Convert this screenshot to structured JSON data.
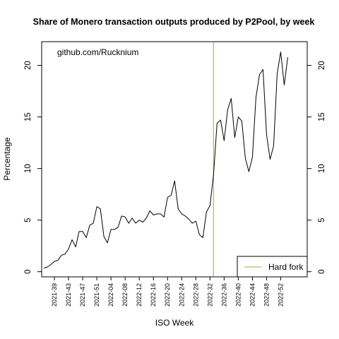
{
  "chart_data": {
    "type": "line",
    "title": "Share of Monero transaction outputs produced by P2Pool, by week",
    "xlabel": "ISO Week",
    "ylabel": "Percentage",
    "annotation": "github.com/Rucknium",
    "ylim": [
      -0.5,
      22.3
    ],
    "xlim": [
      0.4,
      75.5
    ],
    "yticks": [
      0,
      5,
      10,
      15,
      20
    ],
    "xtick_labels": [
      "2021-39",
      "2021-43",
      "2021-47",
      "2021-51",
      "2022-04",
      "2022-08",
      "2022-12",
      "2022-16",
      "2022-20",
      "2022-24",
      "2022-28",
      "2022-32",
      "2022-36",
      "2022-40",
      "2022-44",
      "2022-48",
      "2022-52"
    ],
    "xtick_positions": [
      4,
      8,
      12,
      16,
      20,
      24,
      28,
      32,
      36,
      40,
      44,
      48,
      52,
      56,
      60,
      64,
      68
    ],
    "series": [
      {
        "color": "#000000",
        "x": [
          1,
          2,
          3,
          4,
          5,
          6,
          7,
          8,
          9,
          10,
          11,
          12,
          13,
          14,
          15,
          16,
          17,
          18,
          19,
          20,
          21,
          22,
          23,
          24,
          25,
          26,
          27,
          28,
          29,
          30,
          31,
          32,
          33,
          34,
          35,
          36,
          37,
          38,
          39,
          40,
          41,
          42,
          43,
          44,
          45,
          46,
          47,
          48,
          49,
          50,
          51,
          52,
          53,
          54,
          55,
          56,
          57,
          58,
          59,
          60,
          61,
          62,
          63,
          64,
          65,
          66,
          67,
          68,
          69,
          70,
          71
        ],
        "y": [
          0.35,
          0.45,
          0.7,
          1.0,
          1.1,
          1.6,
          1.7,
          2.2,
          3.1,
          2.4,
          3.9,
          3.9,
          3.3,
          4.5,
          4.7,
          6.3,
          6.1,
          3.4,
          2.8,
          4.1,
          4.1,
          4.3,
          5.4,
          5.3,
          4.7,
          5.2,
          4.7,
          5.0,
          4.8,
          5.2,
          5.9,
          5.5,
          5.6,
          5.6,
          5.3,
          7.2,
          7.4,
          8.8,
          6.1,
          5.6,
          5.4,
          5.1,
          4.7,
          4.9,
          3.6,
          3.3,
          5.8,
          6.4,
          9.4,
          14.4,
          14.7,
          12.7,
          15.7,
          16.8,
          13.0,
          15.0,
          14.6,
          11.0,
          9.7,
          11.1,
          16.9,
          19.1,
          19.6,
          13.3,
          10.9,
          12.2,
          19.2,
          21.3,
          18.1,
          20.8,
          null
        ]
      }
    ],
    "vline": {
      "x": 49,
      "label": "Hard fork",
      "color": "#c8963c"
    },
    "legend": {
      "position": "bottom-right",
      "entries": [
        "Hard fork"
      ]
    },
    "grid": false
  }
}
